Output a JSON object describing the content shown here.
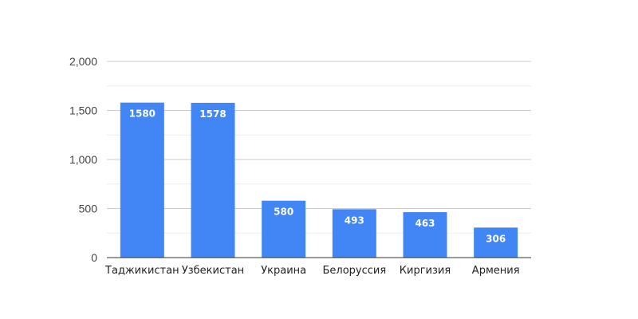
{
  "chart_data": {
    "type": "bar",
    "title": "",
    "xlabel": "",
    "ylabel": "",
    "categories": [
      "Таджикистан",
      "Узбекистан",
      "Украина",
      "Белоруссия",
      "Киргизия",
      "Армения"
    ],
    "values": [
      1580,
      1578,
      580,
      493,
      463,
      306
    ],
    "data_labels": [
      "1580",
      "1578",
      "580",
      "493",
      "463",
      "306"
    ],
    "ylim": [
      0,
      2000
    ],
    "yticks": [
      0,
      500,
      1000,
      1500,
      2000
    ],
    "ytick_labels": [
      "0",
      "500",
      "1,000",
      "1,500",
      "2,000"
    ],
    "minor_gridlines": true,
    "grid": true,
    "legend": "none",
    "bar_color": "#4285f4"
  }
}
